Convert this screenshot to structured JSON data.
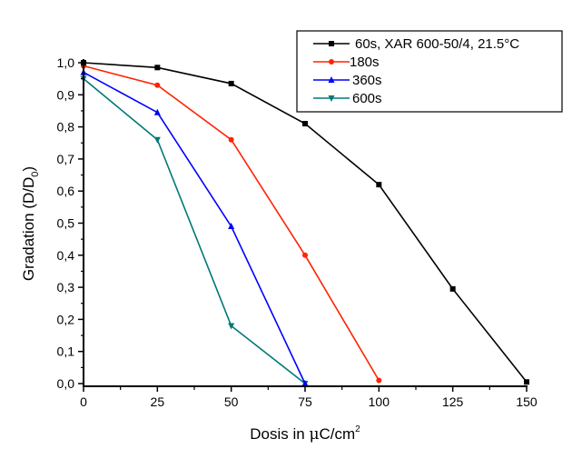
{
  "chart_data": {
    "type": "line",
    "title": "",
    "xlabel": "Dosis in μC/cm",
    "xlabel_parts": {
      "main": "Dosis in ",
      "mu": "μ",
      "rest": "C/cm",
      "sup": "2"
    },
    "ylabel_parts": {
      "main": "Gradation (D/D",
      "sub": "0",
      "end": ")"
    },
    "ylabel": "Gradation (D/D0)",
    "xlim": [
      0,
      150
    ],
    "ylim": [
      0.0,
      1.0
    ],
    "x_ticks": [
      0,
      25,
      50,
      75,
      100,
      125,
      150
    ],
    "x_tick_labels": [
      "0",
      "25",
      "50",
      "75",
      "100",
      "125",
      "150"
    ],
    "y_ticks": [
      0.0,
      0.1,
      0.2,
      0.3,
      0.4,
      0.5,
      0.6,
      0.7,
      0.8,
      0.9,
      1.0
    ],
    "y_tick_labels": [
      "0,0",
      "0,1",
      "0,2",
      "0,3",
      "0,4",
      "0,5",
      "0,6",
      "0,7",
      "0,8",
      "0,9",
      "1,0"
    ],
    "grid": false,
    "legend_position": "top-right",
    "series": [
      {
        "name": "60s, XAR 600-50/4, 21.5°C",
        "color": "#000000",
        "marker": "square",
        "x": [
          0,
          25,
          50,
          75,
          100,
          125,
          150
        ],
        "y": [
          1.0,
          0.985,
          0.935,
          0.81,
          0.62,
          0.295,
          0.005
        ]
      },
      {
        "name": "180s",
        "color": "#ff2200",
        "marker": "circle",
        "x": [
          0,
          25,
          50,
          75,
          100
        ],
        "y": [
          0.99,
          0.93,
          0.76,
          0.4,
          0.01
        ]
      },
      {
        "name": "360s",
        "color": "#0000ff",
        "marker": "triangle-up",
        "x": [
          0,
          25,
          50,
          75
        ],
        "y": [
          0.97,
          0.845,
          0.49,
          0.0
        ]
      },
      {
        "name": "600s",
        "color": "#007878",
        "marker": "triangle-down",
        "x": [
          0,
          25,
          50,
          75
        ],
        "y": [
          0.95,
          0.76,
          0.18,
          0.0
        ]
      }
    ]
  }
}
